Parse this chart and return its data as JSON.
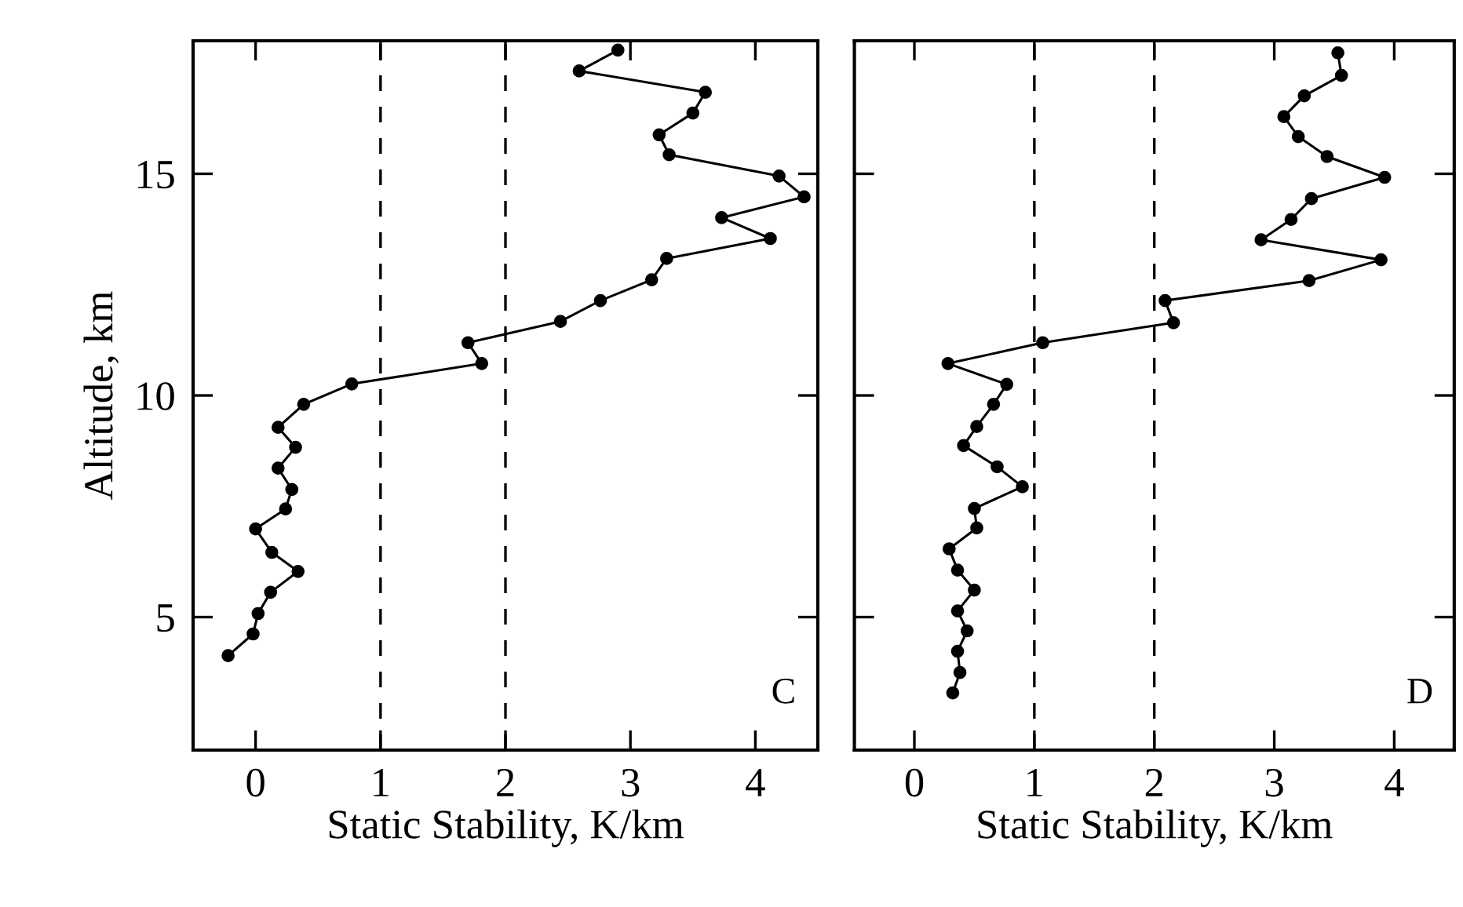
{
  "chart_data": [
    {
      "type": "line",
      "xlabel": "Static Stability, K/km",
      "ylabel": "Altitude, km",
      "xlim": [
        -0.5,
        4.5
      ],
      "xticks": [
        0,
        1,
        2,
        3,
        4
      ],
      "ylim": [
        2,
        18
      ],
      "yticks": [
        5,
        10,
        15
      ],
      "marker": "circle",
      "line_style": "solid",
      "grid": false,
      "legend": false,
      "series": [
        {
          "color": "#000000",
          "x": [
            2.9,
            2.59,
            3.6,
            3.5,
            3.23,
            3.31,
            4.19,
            4.39,
            3.73,
            4.12,
            3.29,
            3.17,
            2.76,
            2.44,
            1.7,
            1.81,
            0.77,
            0.385,
            0.18,
            0.32,
            0.18,
            0.29,
            0.24,
            0.0,
            0.13,
            0.34,
            0.12,
            0.02,
            -0.02,
            -0.22
          ],
          "values": [
            17.79,
            17.32,
            16.84,
            16.37,
            15.88,
            15.43,
            14.95,
            14.48,
            14.01,
            13.54,
            13.09,
            12.61,
            12.14,
            11.67,
            11.19,
            10.72,
            10.26,
            9.8,
            9.28,
            8.83,
            8.36,
            7.88,
            7.44,
            6.99,
            6.46,
            6.03,
            5.56,
            5.08,
            4.62,
            4.13
          ]
        }
      ],
      "ref_lines": [
        {
          "axis": "x",
          "value": 1,
          "color": "#000000",
          "line_style": "dashed"
        },
        {
          "axis": "x",
          "value": 2,
          "color": "#000000",
          "line_style": "dashed"
        }
      ],
      "annotations": [
        "C"
      ]
    },
    {
      "type": "line",
      "xlabel": "Static Stability, K/km",
      "xlim": [
        -0.5,
        4.5
      ],
      "xticks": [
        0,
        1,
        2,
        3,
        4
      ],
      "ylim": [
        2,
        18
      ],
      "yticks": [
        5,
        10,
        15
      ],
      "tick_labels": "x",
      "marker": "circle",
      "line_style": "solid",
      "grid": false,
      "legend": false,
      "series": [
        {
          "color": "#000000",
          "x": [
            3.53,
            3.56,
            3.25,
            3.08,
            3.2,
            3.44,
            3.92,
            3.31,
            3.14,
            2.89,
            3.89,
            3.29,
            2.09,
            2.16,
            1.07,
            0.28,
            0.77,
            0.66,
            0.52,
            0.41,
            0.69,
            0.9,
            0.5,
            0.52,
            0.29,
            0.36,
            0.5,
            0.36,
            0.44,
            0.36,
            0.38,
            0.32
          ],
          "values": [
            17.73,
            17.22,
            16.76,
            16.29,
            15.84,
            15.39,
            14.92,
            14.44,
            13.97,
            13.51,
            13.06,
            12.59,
            12.14,
            11.64,
            11.19,
            10.72,
            10.25,
            9.8,
            9.3,
            8.87,
            8.39,
            7.94,
            7.45,
            7.01,
            6.54,
            6.06,
            5.61,
            5.14,
            4.69,
            4.23,
            3.75,
            3.29
          ]
        }
      ],
      "ref_lines": [
        {
          "axis": "x",
          "value": 1,
          "color": "#000000",
          "line_style": "dashed"
        },
        {
          "axis": "x",
          "value": 2,
          "color": "#000000",
          "line_style": "dashed"
        }
      ],
      "annotations": [
        "D"
      ]
    }
  ]
}
